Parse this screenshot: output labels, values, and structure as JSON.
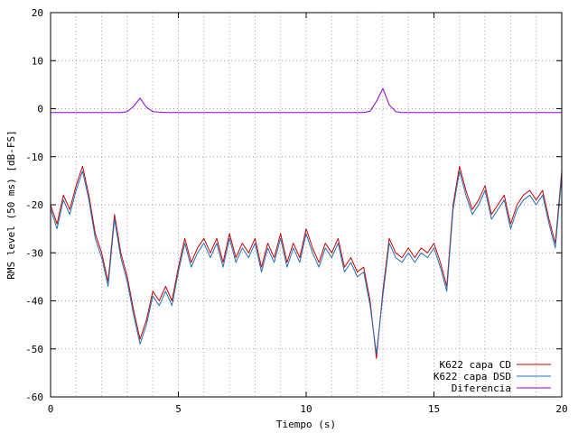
{
  "chart_data": {
    "type": "line",
    "xlabel": "Tiempo (s)",
    "ylabel": "RMS level (50 ms) [dB-FS]",
    "xlim": [
      0,
      20
    ],
    "ylim": [
      -60,
      20
    ],
    "x_ticks": [
      0,
      5,
      10,
      15,
      20
    ],
    "y_ticks": [
      -60,
      -50,
      -40,
      -30,
      -20,
      -10,
      0,
      10,
      20
    ],
    "grid": true,
    "legend_position": "bottom-right",
    "x": [
      0,
      0.25,
      0.5,
      0.75,
      1,
      1.25,
      1.5,
      1.75,
      2,
      2.25,
      2.5,
      2.75,
      3,
      3.25,
      3.5,
      3.75,
      4,
      4.25,
      4.5,
      4.75,
      5,
      5.25,
      5.5,
      5.75,
      6,
      6.25,
      6.5,
      6.75,
      7,
      7.25,
      7.5,
      7.75,
      8,
      8.25,
      8.5,
      8.75,
      9,
      9.25,
      9.5,
      9.75,
      10,
      10.25,
      10.5,
      10.75,
      11,
      11.25,
      11.5,
      11.75,
      12,
      12.25,
      12.5,
      12.75,
      13,
      13.25,
      13.5,
      13.75,
      14,
      14.25,
      14.5,
      14.75,
      15,
      15.25,
      15.5,
      15.75,
      16,
      16.25,
      16.5,
      16.75,
      17,
      17.25,
      17.5,
      17.75,
      18,
      18.25,
      18.5,
      18.75,
      19,
      19.25,
      19.5,
      19.75,
      20
    ],
    "series": [
      {
        "name": "K622 capa CD",
        "color": "#cc0000",
        "values": [
          -20,
          -24,
          -18,
          -21,
          -16,
          -12,
          -18,
          -26,
          -30,
          -36,
          -22,
          -30,
          -35,
          -42,
          -48,
          -44,
          -38,
          -40,
          -37,
          -40,
          -33,
          -27,
          -32,
          -29,
          -27,
          -30,
          -27,
          -32,
          -26,
          -31,
          -28,
          -30,
          -27,
          -33,
          -28,
          -31,
          -26,
          -32,
          -28,
          -31,
          -25,
          -29,
          -32,
          -28,
          -30,
          -27,
          -33,
          -31,
          -34,
          -33,
          -40,
          -52,
          -38,
          -27,
          -30,
          -31,
          -29,
          -31,
          -29,
          -30,
          -28,
          -32,
          -37,
          -20,
          -12,
          -17,
          -21,
          -19,
          -16,
          -22,
          -20,
          -18,
          -24,
          -20,
          -18,
          -17,
          -19,
          -17,
          -23,
          -28,
          -13
        ],
        "linewidth": 1
      },
      {
        "name": "K622 capa DSD",
        "color": "#1f6fbf",
        "values": [
          -20.8,
          -25,
          -19,
          -22,
          -17,
          -13,
          -19,
          -27,
          -31,
          -37,
          -23,
          -31,
          -36,
          -43,
          -49,
          -45,
          -39,
          -41,
          -38,
          -41,
          -34,
          -28,
          -33,
          -30,
          -28,
          -31,
          -28,
          -33,
          -27,
          -32,
          -29,
          -31,
          -28,
          -34,
          -29,
          -32,
          -27,
          -33,
          -29,
          -32,
          -26,
          -30,
          -33,
          -29,
          -31,
          -28,
          -34,
          -32,
          -35,
          -34,
          -41,
          -51,
          -39,
          -28,
          -31,
          -32,
          -30,
          -32,
          -30,
          -31,
          -29,
          -33,
          -38,
          -21,
          -13,
          -18,
          -22,
          -20,
          -17,
          -23,
          -21,
          -19,
          -25,
          -21,
          -19,
          -18,
          -20,
          -18,
          -24,
          -29,
          -14
        ]
      },
      {
        "name": "Diferencia",
        "color": "#9400d3",
        "values": [
          -0.8,
          -0.8,
          -0.8,
          -0.8,
          -0.8,
          -0.8,
          -0.8,
          -0.8,
          -0.8,
          -0.8,
          -0.8,
          -0.8,
          -0.6,
          0.5,
          2.2,
          0.3,
          -0.6,
          -0.7,
          -0.8,
          -0.8,
          -0.8,
          -0.8,
          -0.8,
          -0.8,
          -0.8,
          -0.8,
          -0.8,
          -0.8,
          -0.8,
          -0.8,
          -0.8,
          -0.8,
          -0.8,
          -0.8,
          -0.8,
          -0.8,
          -0.8,
          -0.8,
          -0.8,
          -0.8,
          -0.8,
          -0.8,
          -0.8,
          -0.8,
          -0.8,
          -0.8,
          -0.8,
          -0.8,
          -0.8,
          -0.8,
          -0.5,
          1.5,
          4.2,
          0.8,
          -0.6,
          -0.8,
          -0.8,
          -0.8,
          -0.8,
          -0.8,
          -0.8,
          -0.8,
          -0.8,
          -0.8,
          -0.8,
          -0.8,
          -0.8,
          -0.8,
          -0.8,
          -0.8,
          -0.8,
          -0.8,
          -0.8,
          -0.8,
          -0.8,
          -0.8,
          -0.8,
          -0.8,
          -0.8,
          -0.8,
          -0.8
        ]
      }
    ]
  }
}
